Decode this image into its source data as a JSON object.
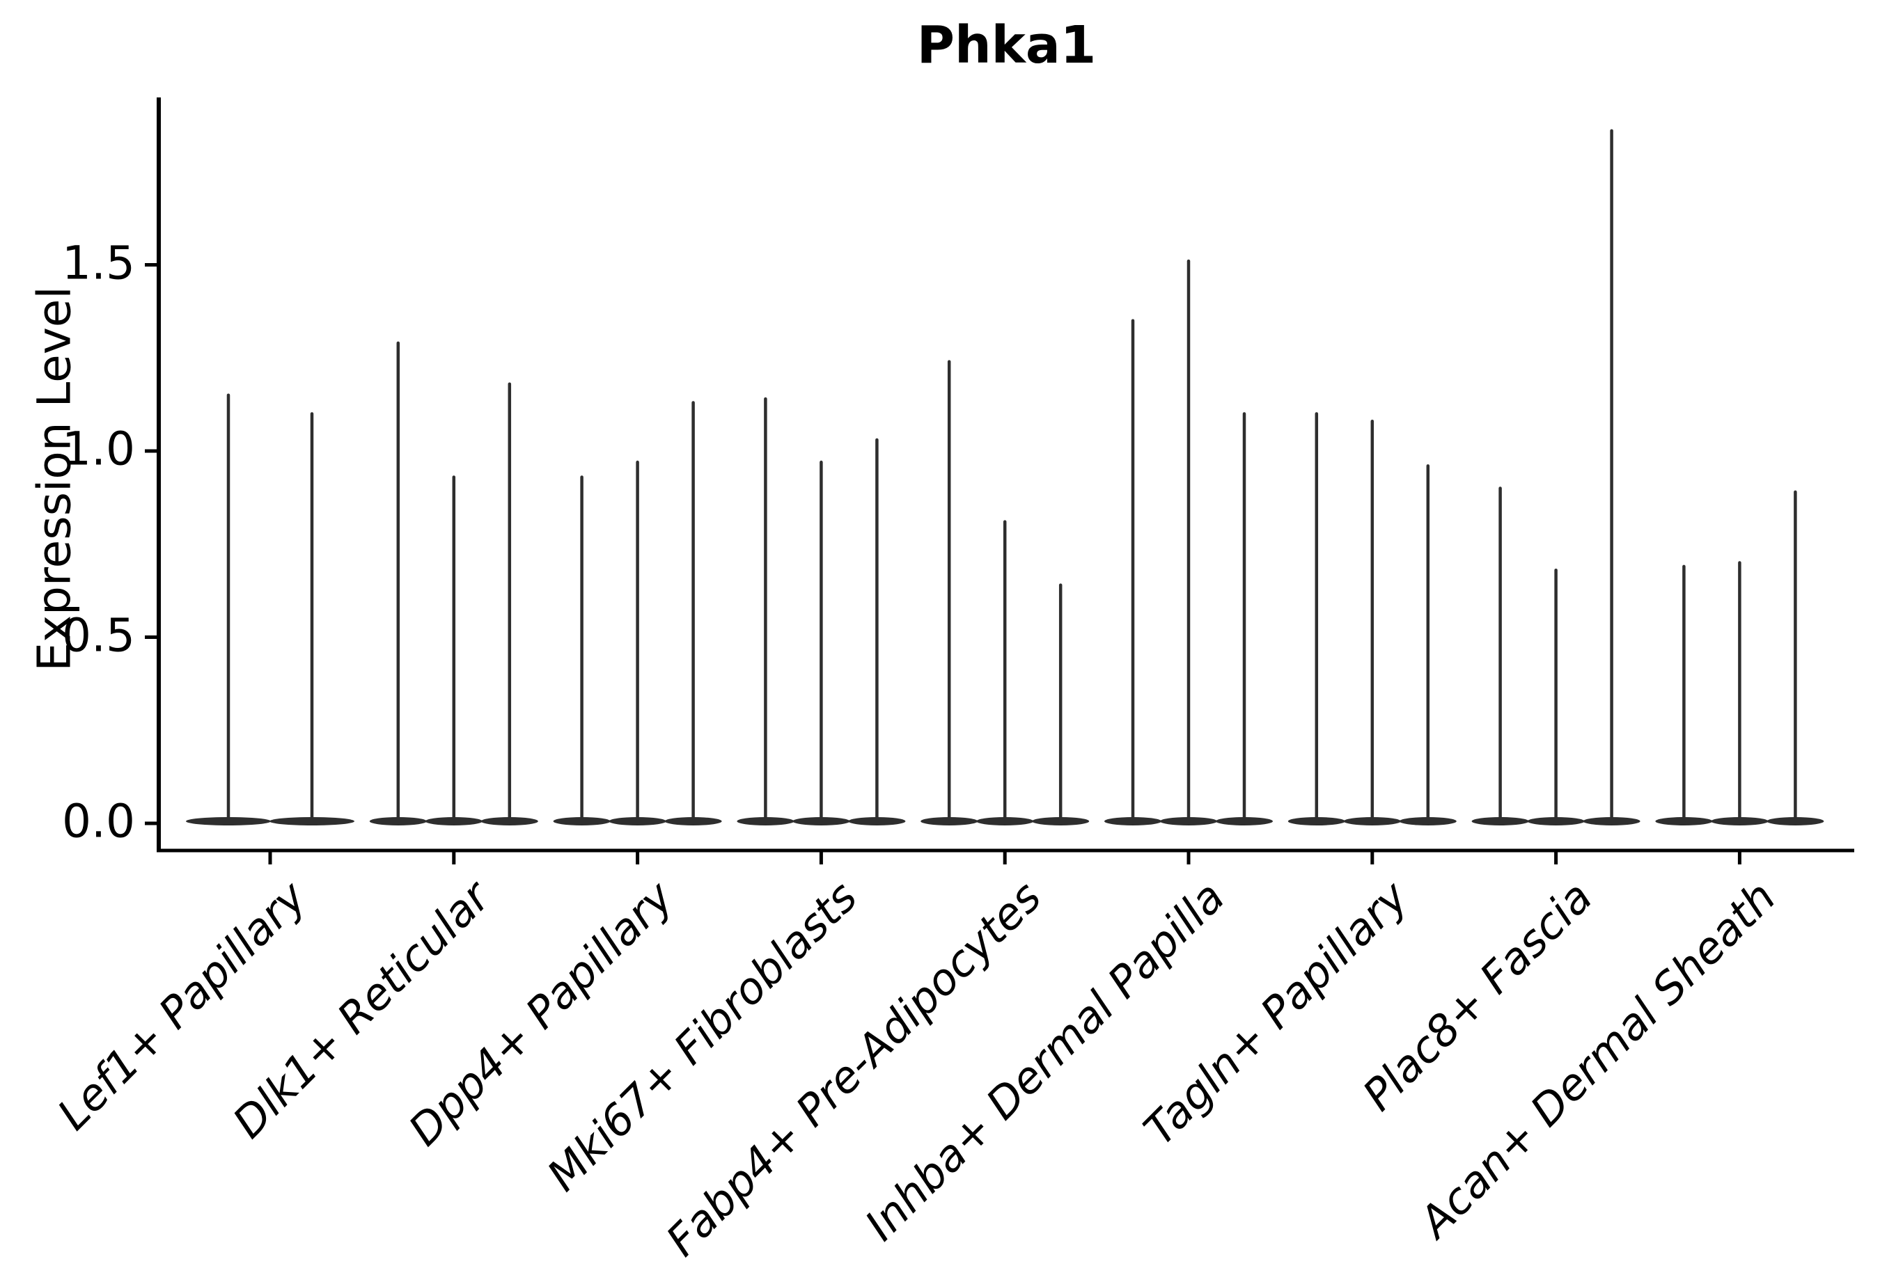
{
  "figure": {
    "title": "Phka1",
    "background": "#ffffff"
  },
  "chart_data": {
    "type": "violin",
    "title": "Phka1",
    "ylabel": "Expression Level",
    "xlabel": "",
    "legend": "none",
    "grid": false,
    "x_tick_label_rotation_deg": 45,
    "x_tick_label_style": "italic",
    "yticks": [
      "0.0",
      "0.5",
      "1.0",
      "1.5"
    ],
    "ytick_values": [
      0.0,
      0.5,
      1.0,
      1.5
    ],
    "ylim": [
      -0.07,
      1.95
    ],
    "violin_color": "#2e2e2e",
    "axis_color": "#000000",
    "text_color": "#000000",
    "categories": [
      "Lef1+ Papillary",
      "Dlk1+ Reticular",
      "Dpp4+ Papillary",
      "Mki67+ Fibroblasts",
      "Fabp4+ Pre-Adipocytes",
      "Inhba+ Dermal Papilla",
      "Tagln+ Papillary",
      "Plac8+ Fascia",
      "Acan+ Dermal Sheath"
    ],
    "groups": [
      {
        "label": "Lef1+ Papillary",
        "violin_maxima": [
          1.15,
          1.1
        ]
      },
      {
        "label": "Dlk1+ Reticular",
        "violin_maxima": [
          1.29,
          0.93,
          1.18
        ]
      },
      {
        "label": "Dpp4+ Papillary",
        "violin_maxima": [
          0.93,
          0.97,
          1.13
        ]
      },
      {
        "label": "Mki67+ Fibroblasts",
        "violin_maxima": [
          1.14,
          0.97,
          1.03
        ]
      },
      {
        "label": "Fabp4+ Pre-Adipocytes",
        "violin_maxima": [
          1.24,
          0.81,
          0.64
        ]
      },
      {
        "label": "Inhba+ Dermal Papilla",
        "violin_maxima": [
          1.35,
          1.51,
          1.1
        ]
      },
      {
        "label": "Tagln+ Papillary",
        "violin_maxima": [
          1.1,
          1.08,
          0.96
        ]
      },
      {
        "label": "Plac8+ Fascia",
        "violin_maxima": [
          0.9,
          0.68,
          1.86
        ]
      },
      {
        "label": "Acan+ Dermal Sheath",
        "violin_maxima": [
          0.69,
          0.7,
          0.89
        ]
      }
    ],
    "violin_shape_note": "each violin: wide flat base at expression 0 with a hairline spike rising to its maximum"
  }
}
